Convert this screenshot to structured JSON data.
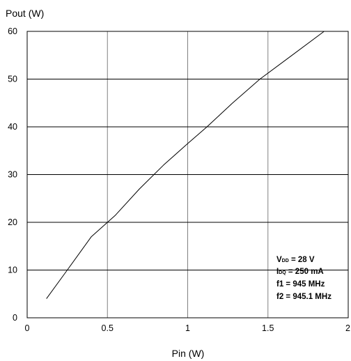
{
  "chart_data": {
    "type": "line",
    "title": "",
    "xlabel": "Pin (W)",
    "ylabel": "Pout (W)",
    "xlim": [
      0,
      2
    ],
    "ylim": [
      0,
      60
    ],
    "x_ticks": [
      0,
      0.5,
      1,
      1.5,
      2
    ],
    "x_tick_labels": [
      "0",
      "0.5",
      "1",
      "1.5",
      "2"
    ],
    "y_ticks": [
      0,
      10,
      20,
      30,
      40,
      50,
      60
    ],
    "y_tick_labels": [
      "0",
      "10",
      "20",
      "30",
      "40",
      "50",
      "60"
    ],
    "grid": {
      "x": true,
      "y": true
    },
    "legend": "none",
    "series": [
      {
        "x": [
          0.12,
          0.25,
          0.4,
          0.55,
          0.7,
          0.85,
          1.0,
          1.12,
          1.28,
          1.45,
          1.65,
          1.85
        ],
        "y": [
          4,
          10,
          17,
          21.5,
          27,
          32,
          36.5,
          40,
          45,
          50,
          55,
          60
        ]
      }
    ],
    "annotations": {
      "vdd": {
        "symbol": "V",
        "sub": "DD",
        "text": " = 28 V"
      },
      "idq": {
        "symbol": "I",
        "sub": "DQ",
        "text": " = 250 mA"
      },
      "f1": "f1 = 945 MHz",
      "f2": "f2 = 945.1 MHz"
    }
  }
}
